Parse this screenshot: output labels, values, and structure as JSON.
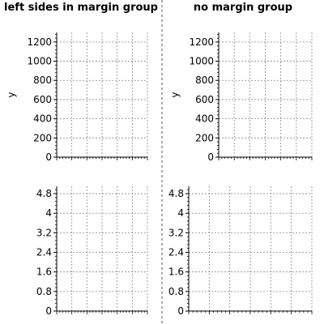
{
  "headers": {
    "left": "left sides in margin group",
    "right": "no margin group"
  },
  "chart_data": [
    {
      "type": "scatter",
      "title": "",
      "xlabel": "",
      "ylabel": "y",
      "ylim": [
        0,
        1300
      ],
      "yticks": [
        0,
        200,
        400,
        600,
        800,
        1000,
        1200
      ],
      "ytick_labels": [
        "0",
        "200",
        "400",
        "600",
        "800",
        "1000",
        "1200"
      ],
      "grid": true,
      "series": []
    },
    {
      "type": "scatter",
      "title": "",
      "xlabel": "",
      "ylabel": "y",
      "ylim": [
        0,
        1300
      ],
      "yticks": [
        0,
        200,
        400,
        600,
        800,
        1000,
        1200
      ],
      "ytick_labels": [
        "0",
        "200",
        "400",
        "600",
        "800",
        "1000",
        "1200"
      ],
      "grid": true,
      "series": []
    },
    {
      "type": "scatter",
      "title": "",
      "xlabel": "",
      "ylabel": "",
      "ylim": [
        0,
        5.1
      ],
      "yticks": [
        0,
        0.8,
        1.6,
        2.4,
        3.2,
        4,
        4.8
      ],
      "ytick_labels": [
        "0",
        "0.8",
        "1.6",
        "2.4",
        "3.2",
        "4",
        "4.8"
      ],
      "grid": true,
      "series": []
    },
    {
      "type": "scatter",
      "title": "",
      "xlabel": "",
      "ylabel": "",
      "ylim": [
        0,
        5.1
      ],
      "yticks": [
        0,
        0.8,
        1.6,
        2.4,
        3.2,
        4,
        4.8
      ],
      "ytick_labels": [
        "0",
        "0.8",
        "1.6",
        "2.4",
        "3.2",
        "4",
        "4.8"
      ],
      "grid": true,
      "series": []
    }
  ]
}
